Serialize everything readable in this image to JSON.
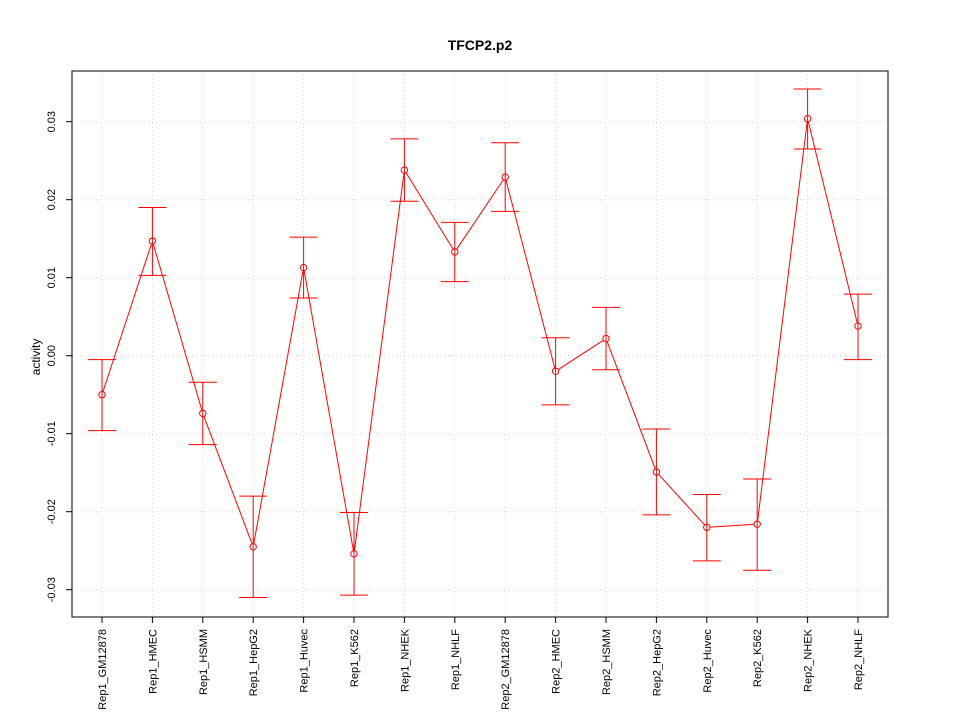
{
  "chart_data": {
    "type": "line",
    "title": "TFCP2.p2",
    "xlabel": "",
    "ylabel": "activity",
    "categories": [
      "Rep1_GM12878",
      "Rep1_HMEC",
      "Rep1_HSMM",
      "Rep1_HepG2",
      "Rep1_Huvec",
      "Rep1_K562",
      "Rep1_NHEK",
      "Rep1_NHLF",
      "Rep2_GM12878",
      "Rep2_HMEC",
      "Rep2_HSMM",
      "Rep2_HepG2",
      "Rep2_Huvec",
      "Rep2_K562",
      "Rep2_NHEK",
      "Rep2_NHLF"
    ],
    "values": [
      -0.005,
      0.0147,
      -0.0074,
      -0.0245,
      0.0113,
      -0.0254,
      0.0238,
      0.0133,
      0.0229,
      -0.002,
      0.0022,
      -0.0149,
      -0.022,
      -0.0216,
      0.0304,
      0.0038
    ],
    "error_low": [
      -0.0096,
      0.0103,
      -0.0114,
      -0.031,
      0.0074,
      -0.0307,
      0.0198,
      0.0095,
      0.0185,
      -0.0063,
      -0.0018,
      -0.0204,
      -0.0263,
      -0.0275,
      0.0265,
      -0.0005
    ],
    "error_high": [
      -0.0005,
      0.019,
      -0.0034,
      -0.018,
      0.0152,
      -0.0201,
      0.0278,
      0.0171,
      0.0273,
      0.0023,
      0.0062,
      -0.0094,
      -0.0178,
      -0.0158,
      0.0342,
      0.0079
    ],
    "yticks": [
      -0.03,
      -0.02,
      -0.01,
      0.0,
      0.01,
      0.02,
      0.03
    ],
    "ytick_labels": [
      "-0.03",
      "-0.02",
      "-0.01",
      "0.00",
      "0.01",
      "0.02",
      "0.03"
    ],
    "ylim": [
      -0.0335,
      0.0365
    ],
    "grid": true,
    "colors": {
      "series": "#ff0000",
      "grid": "#d3d3d3",
      "axis": "#000000"
    }
  }
}
